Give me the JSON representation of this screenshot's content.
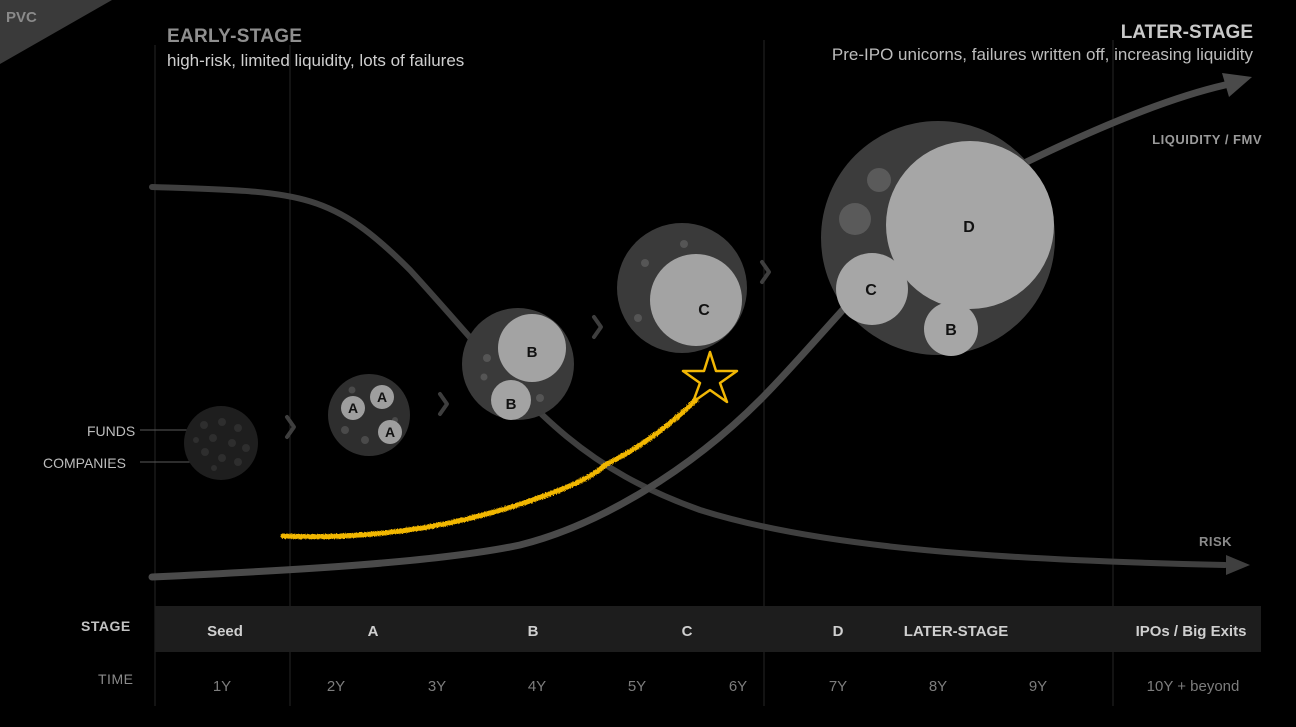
{
  "corner_label": "PVC",
  "early_stage": {
    "title": "EARLY-STAGE",
    "subtitle": "high-risk, limited liquidity, lots of failures"
  },
  "later_stage": {
    "title": "LATER-STAGE",
    "subtitle": "Pre-IPO unicorns, failures written off, increasing liquidity"
  },
  "curves": {
    "liquidity_label": "LIQUIDITY / FMV",
    "risk_label": "RISK"
  },
  "legend": {
    "funds": "FUNDS",
    "companies": "COMPANIES"
  },
  "bubbles": {
    "round_a": [
      "A",
      "A",
      "A"
    ],
    "round_b": [
      "B",
      "B"
    ],
    "round_c": [
      "C"
    ],
    "later": [
      "D",
      "C",
      "B"
    ]
  },
  "colors": {
    "highlight_path": "#f2b705",
    "curve": "#4a4a4a",
    "band": "#1d1d1d"
  },
  "table": {
    "stage_header": "STAGE",
    "time_header": "TIME",
    "stages": [
      "Seed",
      "A",
      "B",
      "C",
      "D",
      "LATER-STAGE",
      "IPOs / Big Exits"
    ],
    "times": [
      "1Y",
      "2Y",
      "3Y",
      "4Y",
      "5Y",
      "6Y",
      "7Y",
      "8Y",
      "9Y",
      "10Y + beyond"
    ]
  }
}
